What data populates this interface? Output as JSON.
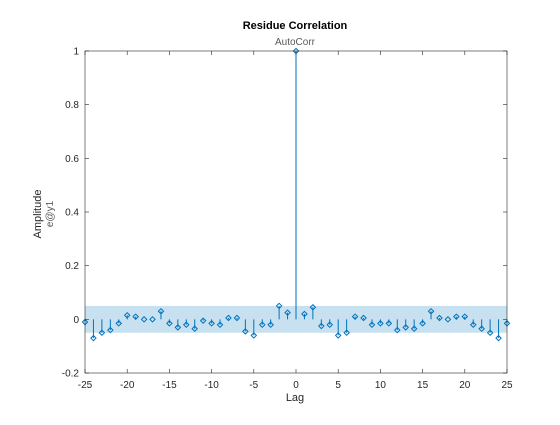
{
  "figure": {
    "title": "Residue Correlation",
    "subtitle": "AutoCorr",
    "xlabel": "Lag",
    "ylabel": "Amplitude",
    "ylabel_secondary": "e@y1"
  },
  "chart_data": {
    "type": "stem",
    "title": "Residue Correlation",
    "subtitle": "AutoCorr",
    "xlabel": "Lag",
    "ylabel": "Amplitude",
    "ylabel_secondary": "e@y1",
    "xlim": [
      -25,
      25
    ],
    "ylim": [
      -0.2,
      1
    ],
    "xticks": [
      -25,
      -20,
      -15,
      -10,
      -5,
      0,
      5,
      10,
      15,
      20,
      25
    ],
    "yticks": [
      -0.2,
      0,
      0.2,
      0.4,
      0.6,
      0.8,
      1
    ],
    "xtick_labels": [
      "-25",
      "-20",
      "-15",
      "-10",
      "-5",
      "0",
      "5",
      "10",
      "15",
      "20",
      "25"
    ],
    "ytick_labels": [
      "-0.2",
      "0",
      "0.2",
      "0.4",
      "0.6",
      "0.8",
      "1"
    ],
    "grid": false,
    "confidence_band": [
      -0.05,
      0.05
    ],
    "colors": {
      "stem": "#0072bd",
      "band": "#c8e1f0",
      "axis": "#262626",
      "text": "#262626",
      "subtitle": "#595959"
    },
    "lags": [
      -25,
      -24,
      -23,
      -22,
      -21,
      -20,
      -19,
      -18,
      -17,
      -16,
      -15,
      -14,
      -13,
      -12,
      -11,
      -10,
      -9,
      -8,
      -7,
      -6,
      -5,
      -4,
      -3,
      -2,
      -1,
      0,
      1,
      2,
      3,
      4,
      5,
      6,
      7,
      8,
      9,
      10,
      11,
      12,
      13,
      14,
      15,
      16,
      17,
      18,
      19,
      20,
      21,
      22,
      23,
      24,
      25
    ],
    "values": [
      -0.01,
      -0.07,
      -0.05,
      -0.04,
      -0.015,
      0.015,
      0.01,
      0.0,
      0.0,
      0.03,
      -0.015,
      -0.03,
      -0.02,
      -0.035,
      -0.005,
      -0.015,
      -0.02,
      0.005,
      0.005,
      -0.045,
      -0.06,
      -0.02,
      -0.02,
      0.05,
      0.025,
      1.0,
      0.02,
      0.045,
      -0.025,
      -0.02,
      -0.06,
      -0.05,
      0.01,
      0.005,
      -0.02,
      -0.015,
      -0.015,
      -0.04,
      -0.03,
      -0.035,
      -0.015,
      0.03,
      0.005,
      0.0,
      0.01,
      0.01,
      -0.02,
      -0.035,
      -0.05,
      -0.07,
      -0.015
    ]
  }
}
